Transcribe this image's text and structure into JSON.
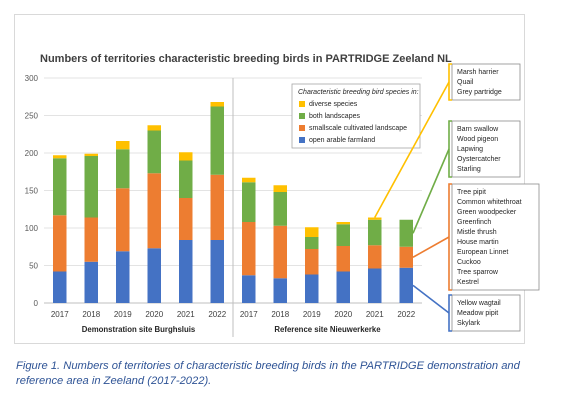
{
  "chart_data": {
    "type": "bar",
    "stacked": true,
    "title": "Numbers of territories characteristic breeding birds in PARTRIDGE Zeeland NL",
    "ylim": [
      0,
      300
    ],
    "yticks": [
      0,
      50,
      100,
      150,
      200,
      250,
      300
    ],
    "grid": true,
    "legend_position": "top-right",
    "legend_title": "Characteristic breeding bird species in:",
    "groups": [
      {
        "label": "Demonstration site Burghsluis",
        "categories": [
          "2017",
          "2018",
          "2019",
          "2020",
          "2021",
          "2022"
        ]
      },
      {
        "label": "Reference site Nieuwerkerke",
        "categories": [
          "2017",
          "2018",
          "2019",
          "2020",
          "2021",
          "2022"
        ]
      }
    ],
    "series": [
      {
        "name": "open arable farmland",
        "color": "#4472c4",
        "values": [
          42,
          55,
          69,
          73,
          84,
          84,
          37,
          33,
          38,
          42,
          46,
          47
        ]
      },
      {
        "name": "smallscale cultivated landscape",
        "color": "#ed7d31",
        "values": [
          75,
          59,
          84,
          100,
          56,
          87,
          71,
          70,
          34,
          34,
          31,
          28
        ]
      },
      {
        "name": "both landscapes",
        "color": "#70ad47",
        "values": [
          76,
          82,
          52,
          57,
          50,
          91,
          53,
          45,
          16,
          29,
          34,
          36
        ]
      },
      {
        "name": "diverse species",
        "color": "#ffc000",
        "values": [
          4,
          3,
          11,
          7,
          11,
          6,
          6,
          9,
          13,
          3,
          3,
          0
        ]
      }
    ]
  },
  "annotations": [
    {
      "series": "diverse species",
      "color": "#ffc000",
      "species": [
        "Marsh harrier",
        "Quail",
        "Grey partridge"
      ]
    },
    {
      "series": "both landscapes",
      "color": "#70ad47",
      "species": [
        "Barn swallow",
        "Wood pigeon",
        "Lapwing",
        "Oystercatcher",
        "Starling"
      ]
    },
    {
      "series": "smallscale cultivated landscape",
      "color": "#ed7d31",
      "species": [
        "Tree pipit",
        "Common whitethroat",
        "Green woodpecker",
        "Greenfinch",
        "Mistle thrush",
        "House martin",
        "European Linnet",
        "Cuckoo",
        "Tree sparrow",
        "Kestrel"
      ]
    },
    {
      "series": "open arable farmland",
      "color": "#4472c4",
      "species": [
        "Yellow wagtail",
        "Meadow pipit",
        "Skylark"
      ]
    }
  ],
  "caption": "Figure 1. Numbers of territories of characteristic breeding birds in the PARTRIDGE demonstration and reference area in Zeeland (2017-2022)."
}
